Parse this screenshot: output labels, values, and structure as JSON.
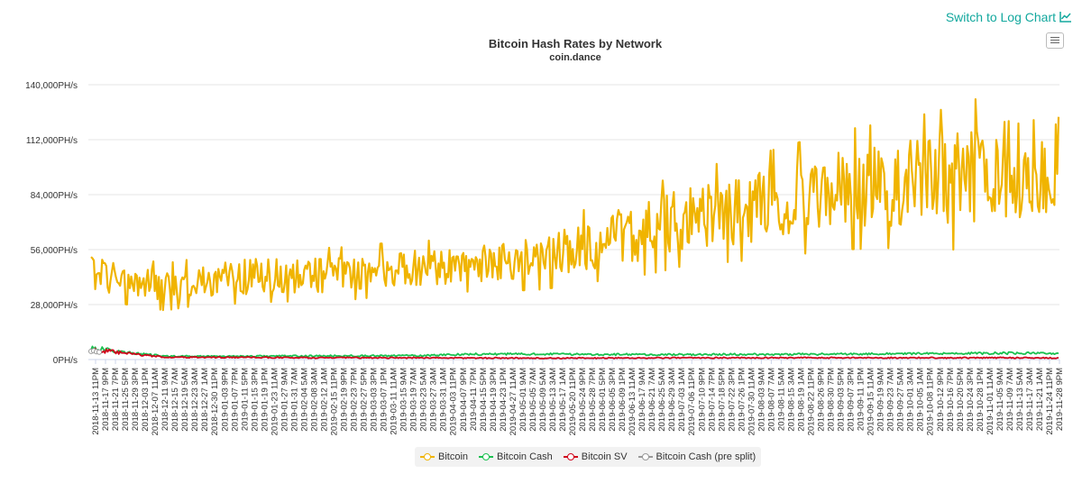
{
  "header": {
    "log_link_label": "Switch to Log Chart",
    "log_icon": "line-chart-icon",
    "menu_icon": "hamburger-menu-icon"
  },
  "chart_data": {
    "type": "line",
    "title": "Bitcoin Hash Rates by Network",
    "subtitle": "coin.dance",
    "xlabel": "",
    "ylabel": "",
    "ylim": [
      0,
      140000
    ],
    "yticks": [
      0,
      28000,
      56000,
      84000,
      112000,
      140000
    ],
    "ytick_labels": [
      "0PH/s",
      "28,000PH/s",
      "56,000PH/s",
      "84,000PH/s",
      "112,000PH/s",
      "140,000PH/s"
    ],
    "x_tick_labels": [
      "2018-11-13 11PM",
      "2018-11-17 9PM",
      "2018-11-21 7PM",
      "2018-11-25 5PM",
      "2018-11-29 3PM",
      "2018-12-03 1PM",
      "2018-12-07 11AM",
      "2018-12-11 9AM",
      "2018-12-15 7AM",
      "2018-12-19 5AM",
      "2018-12-23 3AM",
      "2018-12-27 1AM",
      "2018-12-30 11PM",
      "2019-01-03 9PM",
      "2019-01-07 7PM",
      "2019-01-11 5PM",
      "2019-01-15 3PM",
      "2019-01-19 1PM",
      "2019-01-23 11AM",
      "2019-01-27 9AM",
      "2019-01-31 7AM",
      "2019-02-04 5AM",
      "2019-02-08 3AM",
      "2019-02-12 1AM",
      "2019-02-15 11PM",
      "2019-02-19 9PM",
      "2019-02-23 7PM",
      "2019-02-27 5PM",
      "2019-03-03 3PM",
      "2019-03-07 1PM",
      "2019-03-11 11AM",
      "2019-03-15 9AM",
      "2019-03-19 7AM",
      "2019-03-23 5AM",
      "2019-03-27 3AM",
      "2019-03-31 1AM",
      "2019-04-03 11PM",
      "2019-04-07 9PM",
      "2019-04-11 7PM",
      "2019-04-15 5PM",
      "2019-04-19 3PM",
      "2019-04-23 1PM",
      "2019-04-27 11AM",
      "2019-05-01 9AM",
      "2019-05-05 7AM",
      "2019-05-09 5AM",
      "2019-05-13 3AM",
      "2019-05-17 1AM",
      "2019-05-20 11PM",
      "2019-05-24 9PM",
      "2019-05-28 7PM",
      "2019-06-01 5PM",
      "2019-06-05 3PM",
      "2019-06-09 1PM",
      "2019-06-13 11AM",
      "2019-06-17 9AM",
      "2019-06-21 7AM",
      "2019-06-25 5AM",
      "2019-06-29 3AM",
      "2019-07-03 1AM",
      "2019-07-06 11PM",
      "2019-07-10 9PM",
      "2019-07-14 7PM",
      "2019-07-18 5PM",
      "2019-07-22 3PM",
      "2019-07-26 1PM",
      "2019-07-30 11AM",
      "2019-08-03 9AM",
      "2019-08-07 7AM",
      "2019-08-11 5AM",
      "2019-08-15 3AM",
      "2019-08-19 1AM",
      "2019-08-22 11PM",
      "2019-08-26 9PM",
      "2019-08-30 7PM",
      "2019-09-03 5PM",
      "2019-09-07 3PM",
      "2019-09-11 1PM",
      "2019-09-15 11AM",
      "2019-09-19 9AM",
      "2019-09-23 7AM",
      "2019-09-27 5AM",
      "2019-10-01 3AM",
      "2019-10-05 1AM",
      "2019-10-08 11PM",
      "2019-10-12 9PM",
      "2019-10-16 7PM",
      "2019-10-20 5PM",
      "2019-10-24 3PM",
      "2019-10-28 1PM",
      "2019-11-01 11AM",
      "2019-11-05 9AM",
      "2019-11-09 7AM",
      "2019-11-13 5AM",
      "2019-11-17 3AM",
      "2019-11-21 1AM",
      "2019-11-24 11PM",
      "2019-11-28 9PM"
    ],
    "grid": true,
    "legend_position": "bottom-center",
    "series": [
      {
        "name": "Bitcoin",
        "color": "#f0b400",
        "trend": [
          45000,
          40000,
          37000,
          40000,
          42000,
          43000,
          43000,
          44000,
          46000,
          47000,
          48000,
          50000,
          52000,
          56000,
          62000,
          66000,
          72000,
          75000,
          78000,
          82000,
          86000,
          88000,
          90000,
          92000,
          95000,
          98000,
          100000
        ],
        "amplitude": [
          10000,
          8000,
          8000,
          8000,
          9000,
          9000,
          9000,
          9000,
          9000,
          9000,
          9000,
          10000,
          11000,
          12000,
          14000,
          15000,
          16000,
          17000,
          18000,
          19000,
          20000,
          21000,
          22000,
          24000,
          26000,
          26000,
          24000
        ]
      },
      {
        "name": "Bitcoin Cash",
        "color": "#1ac04f",
        "trend": [
          6000,
          3500,
          1700,
          1700,
          1700,
          1800,
          1800,
          1900,
          1900,
          2100,
          2700,
          2800,
          2800,
          2700,
          2600,
          2500,
          2500,
          2600,
          2600,
          2700,
          2800,
          2900,
          3000,
          3100,
          3200,
          3300,
          3000
        ],
        "amplitude": [
          1500,
          600,
          400,
          400,
          400,
          400,
          400,
          400,
          400,
          500,
          500,
          500,
          500,
          500,
          500,
          500,
          500,
          500,
          500,
          500,
          500,
          500,
          500,
          500,
          600,
          600,
          500
        ]
      },
      {
        "name": "Bitcoin SV",
        "color": "#d0021b",
        "trend": [
          5000,
          3000,
          1200,
          1100,
          1100,
          1000,
          900,
          900,
          900,
          900,
          800,
          800,
          700,
          700,
          800,
          800,
          900,
          900,
          900,
          900,
          900,
          900,
          900,
          900,
          900,
          900,
          800
        ],
        "amplitude": [
          1500,
          700,
          300,
          300,
          300,
          300,
          300,
          300,
          300,
          300,
          300,
          300,
          300,
          300,
          300,
          300,
          300,
          300,
          300,
          300,
          300,
          300,
          300,
          300,
          300,
          300,
          300
        ]
      },
      {
        "name": "Bitcoin Cash (pre split)",
        "color": "#999999",
        "points": [
          [
            0,
            4200
          ],
          [
            1,
            4500
          ],
          [
            2,
            4000
          ],
          [
            3,
            3800
          ]
        ]
      }
    ]
  }
}
